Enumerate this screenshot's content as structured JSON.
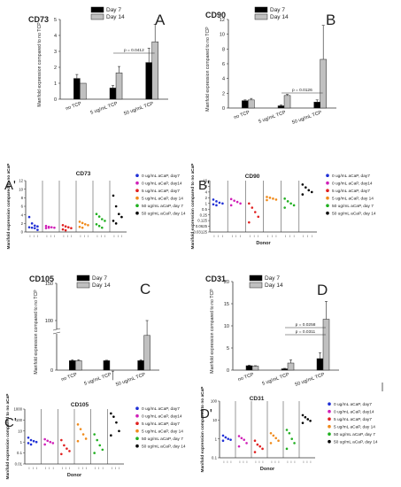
{
  "chart_data": [
    {
      "id": "A",
      "panel_letter": "A",
      "marker": "CD73",
      "type": "bar",
      "ylabel": "Manifold expression compared to no TCP",
      "categories": [
        "no TCP",
        "5 ug/mL TCP",
        "50 ug/mL TCP"
      ],
      "series": [
        {
          "name": "Day 7",
          "color": "#000000",
          "values": [
            1.3,
            0.7,
            2.3
          ],
          "errors": [
            0.25,
            0.15,
            0.9
          ]
        },
        {
          "name": "Day 14",
          "color": "#c0c0c0",
          "values": [
            1.0,
            1.65,
            3.6
          ],
          "errors": [
            0.0,
            0.4,
            1.1
          ]
        }
      ],
      "ylim": [
        0,
        5
      ],
      "yticks": [
        0,
        1,
        2,
        3,
        4,
        5
      ],
      "annotations": [
        {
          "text": "p = 0.0412"
        }
      ]
    },
    {
      "id": "B",
      "panel_letter": "B",
      "marker": "CD90",
      "type": "bar",
      "ylabel": "Manifold expression compared to no TCP",
      "categories": [
        "no TCP",
        "5 ug/mL TCP",
        "50 ug/mL TCP"
      ],
      "series": [
        {
          "name": "Day 7",
          "color": "#000000",
          "values": [
            1.0,
            0.3,
            0.8
          ],
          "errors": [
            0.1,
            0.1,
            0.3
          ]
        },
        {
          "name": "Day 14",
          "color": "#c0c0c0",
          "values": [
            1.1,
            1.7,
            6.6
          ],
          "errors": [
            0.2,
            0.15,
            4.6
          ]
        }
      ],
      "ylim": [
        0,
        12
      ],
      "yticks": [
        0,
        2,
        4,
        6,
        8,
        10,
        12
      ],
      "annotations": [
        {
          "text": "p = 0.0126"
        }
      ]
    },
    {
      "id": "A'",
      "panel_letter": "A'",
      "marker": "CD73",
      "type": "scatter",
      "ylabel": "Manifold expression compared to no aCaP",
      "xlabel": "",
      "ylim": [
        0,
        12
      ],
      "yticks": [
        0,
        2,
        4,
        6,
        8,
        10,
        12
      ],
      "groups": [
        {
          "label": "0 ug/mL aCaP, day7",
          "color": "#1f2fd6",
          "values": [
            3.5,
            2.0,
            1.5,
            1.3,
            1.1,
            1.0,
            0.9,
            0.5
          ]
        },
        {
          "label": "0 ug/mL aCaP, day14",
          "color": "#d01fb8",
          "values": [
            1.4,
            1.2,
            1.1,
            1.0,
            0.9,
            1.0
          ]
        },
        {
          "label": "5 ug/mL aCaP, day7",
          "color": "#e02020",
          "values": [
            1.6,
            1.3,
            1.1,
            0.9,
            0.6,
            0.4
          ]
        },
        {
          "label": "5 ug/mL aCaP, day 14",
          "color": "#f08a1a",
          "values": [
            2.4,
            2.1,
            1.8,
            1.6,
            1.2,
            1.0
          ]
        },
        {
          "label": "50 ug/mL aCaP, day 7",
          "color": "#20b020",
          "values": [
            4.2,
            3.6,
            3.0,
            2.6,
            1.8,
            1.4,
            1.0
          ]
        },
        {
          "label": "50 ug/mL aCaP, day 14",
          "color": "#000000",
          "values": [
            8.5,
            6.0,
            4.2,
            3.5,
            2.6,
            2.0
          ]
        }
      ]
    },
    {
      "id": "B'",
      "panel_letter": "B'",
      "marker": "CD90",
      "type": "scatter",
      "ylabel": "Manifold expression compared to no aCaP",
      "xlabel": "Donor",
      "scale": "log2",
      "yticks": [
        0.03125,
        0.0625,
        0.125,
        0.25,
        0.5,
        1,
        2,
        4,
        8,
        16
      ],
      "ytick_labels": [
        "0.03125",
        "0.0625",
        "0.125",
        "0.25",
        "0.5",
        "1",
        "2",
        "4",
        "8",
        "16"
      ],
      "ylim": [
        0.03125,
        16
      ],
      "groups": [
        {
          "label": "0 ug/mL aCaP, day7",
          "color": "#1f2fd6",
          "values": [
            1.6,
            1.3,
            1.1,
            1.0,
            0.9,
            0.8
          ]
        },
        {
          "label": "0 ug/mL aCaP, day14",
          "color": "#d01fb8",
          "values": [
            1.7,
            1.4,
            1.2,
            1.0,
            0.8
          ]
        },
        {
          "label": "5 ug/mL aCaP, day7",
          "color": "#e02020",
          "values": [
            1.0,
            0.6,
            0.35,
            0.2,
            0.1
          ]
        },
        {
          "label": "5 ug/mL aCaP, day 14",
          "color": "#f08a1a",
          "values": [
            2.2,
            2.0,
            1.8,
            1.6,
            1.5
          ]
        },
        {
          "label": "50 ug/mL aCaP, day 7",
          "color": "#20b020",
          "values": [
            1.8,
            1.3,
            1.0,
            0.8,
            0.6
          ]
        },
        {
          "label": "50 ug/mL aCaP, day 14",
          "color": "#000000",
          "values": [
            10,
            7,
            5,
            4,
            3
          ]
        }
      ]
    },
    {
      "id": "C",
      "panel_letter": "C",
      "marker": "CD105",
      "type": "bar",
      "ylabel": "Manifold expression compared to no TCP",
      "categories": [
        "no TCP",
        "5 ug/mL TCP",
        "50 ug/mL TCP"
      ],
      "series": [
        {
          "name": "Day 7",
          "color": "#000000",
          "values": [
            1.0,
            1.0,
            1.0
          ],
          "errors": [
            0.1,
            0.05,
            0.1
          ]
        },
        {
          "name": "Day 14",
          "color": "#c0c0c0",
          "values": [
            1.0,
            20,
            80
          ],
          "errors": [
            0.1,
            12,
            20
          ]
        }
      ],
      "yticks": [
        0,
        100,
        150
      ],
      "ylim": [
        0,
        150
      ],
      "axis_break": true
    },
    {
      "id": "D",
      "panel_letter": "D",
      "marker": "CD31",
      "type": "bar",
      "ylabel": "Manifold expression compared to no TCP",
      "categories": [
        "no TCP",
        "5 ug/mL TCP",
        "50 ug/mL TCP"
      ],
      "series": [
        {
          "name": "Day 7",
          "color": "#000000",
          "values": [
            1.0,
            0.3,
            2.6
          ],
          "errors": [
            0.1,
            0.1,
            1.3
          ]
        },
        {
          "name": "Day 14",
          "color": "#c0c0c0",
          "values": [
            0.9,
            1.6,
            11.5
          ],
          "errors": [
            0.1,
            0.7,
            4.0
          ]
        }
      ],
      "ylim": [
        0,
        20
      ],
      "yticks": [
        0,
        5,
        10,
        15,
        20
      ],
      "annotations": [
        {
          "text": "p = 0.0258"
        },
        {
          "text": "p = 0.0311"
        }
      ]
    },
    {
      "id": "C'",
      "panel_letter": "C'",
      "marker": "CD105",
      "type": "scatter",
      "ylabel": "Manifold expression compared to no aCaP",
      "xlabel": "Donor",
      "scale": "log10",
      "ylim": [
        0.01,
        1000
      ],
      "yticks": [
        0.01,
        0.1,
        1,
        10,
        100,
        1000
      ],
      "ytick_labels": [
        "0.01",
        "0.1",
        "1",
        "10",
        "100",
        "1000"
      ],
      "groups": [
        {
          "label": "0 ug/mL aCaP, day7",
          "color": "#1f2fd6",
          "values": [
            2.5,
            1.5,
            1.2,
            1.0,
            0.8,
            0.6
          ]
        },
        {
          "label": "0 ug/mL aCaP, day14",
          "color": "#d01fb8",
          "values": [
            1.8,
            1.3,
            1.0,
            0.8,
            0.6
          ]
        },
        {
          "label": "5 ug/mL aCaP, day7",
          "color": "#e02020",
          "values": [
            1.5,
            0.5,
            0.25,
            0.15,
            0.08
          ]
        },
        {
          "label": "5 ug/mL aCaP, day 14",
          "color": "#f08a1a",
          "values": [
            40,
            15,
            5,
            2,
            1.2
          ]
        },
        {
          "label": "50 ug/mL aCaP, day 7",
          "color": "#20b020",
          "values": [
            5,
            1.5,
            0.5,
            0.2,
            0.1
          ]
        },
        {
          "label": "50 ug/mL aCaP, day 14",
          "color": "#000000",
          "values": [
            400,
            200,
            60,
            10,
            4
          ]
        }
      ]
    },
    {
      "id": "D'",
      "panel_letter": "D'",
      "marker": "CD31",
      "type": "scatter",
      "ylabel": "Manifold expression compared to no aCaP",
      "xlabel": "Donor",
      "scale": "log10",
      "ylim": [
        0.1,
        100
      ],
      "yticks": [
        0.1,
        1,
        10,
        100
      ],
      "ytick_labels": [
        "0.1",
        "1",
        "10",
        "100"
      ],
      "groups": [
        {
          "label": "0 ug/mL aCaP, day7",
          "color": "#1f2fd6",
          "values": [
            1.5,
            1.2,
            1.0,
            0.9,
            0.8
          ]
        },
        {
          "label": "0 ug/mL aCaP, day14",
          "color": "#d01fb8",
          "values": [
            1.4,
            1.1,
            0.9,
            0.6,
            0.4
          ]
        },
        {
          "label": "5 ug/mL aCaP, day7",
          "color": "#e02020",
          "values": [
            0.8,
            0.5,
            0.4,
            0.3,
            0.2
          ]
        },
        {
          "label": "5 ug/mL aCaP, day 14",
          "color": "#f08a1a",
          "values": [
            2.0,
            1.5,
            1.1,
            0.8,
            0.6
          ]
        },
        {
          "label": "50 ug/mL aCaP, day 7",
          "color": "#20b020",
          "values": [
            3.0,
            2.0,
            1.0,
            0.6,
            0.3
          ]
        },
        {
          "label": "50 ug/mL aCaP, day 14",
          "color": "#000000",
          "values": [
            18,
            14,
            11,
            9,
            7
          ]
        }
      ]
    }
  ]
}
